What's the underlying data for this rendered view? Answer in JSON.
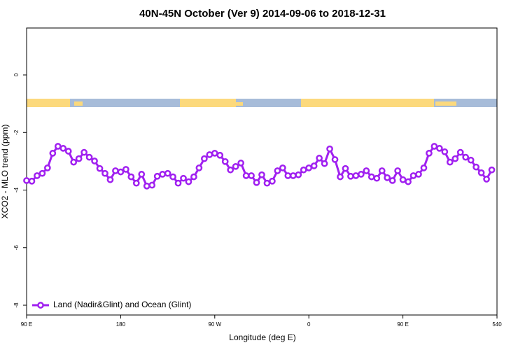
{
  "chart_data": {
    "type": "line",
    "title": "40N-45N October (Ver 9)   2014-09-06 to 2018-12-31",
    "x_label": "Longitude (deg E)",
    "y_label": "XCO2 - MLO trend (ppm)",
    "x": [
      90,
      95,
      100,
      105,
      110,
      115,
      120,
      125,
      130,
      135,
      140,
      145,
      150,
      155,
      160,
      165,
      170,
      175,
      180,
      185,
      190,
      195,
      200,
      205,
      210,
      215,
      220,
      225,
      230,
      235,
      240,
      245,
      250,
      255,
      260,
      265,
      270,
      275,
      280,
      285,
      290,
      295,
      300,
      305,
      310,
      315,
      320,
      325,
      330,
      335,
      340,
      345,
      350,
      355,
      360,
      365,
      370,
      375,
      380,
      385,
      390,
      395,
      400,
      405,
      410,
      415,
      420,
      425,
      430,
      435,
      440,
      445,
      450,
      455,
      460,
      465,
      470,
      475,
      480,
      485,
      490,
      495,
      500,
      505,
      510,
      515,
      520,
      525,
      530,
      535
    ],
    "series": [
      {
        "name": "Land (Nadir&Glint) and Ocean (Glint)",
        "color": "#a020f0",
        "values": [
          -3.67,
          -3.69,
          -3.5,
          -3.42,
          -3.23,
          -2.72,
          -2.48,
          -2.55,
          -2.65,
          -3.03,
          -2.91,
          -2.69,
          -2.86,
          -2.99,
          -3.25,
          -3.42,
          -3.64,
          -3.33,
          -3.37,
          -3.28,
          -3.54,
          -3.76,
          -3.45,
          -3.86,
          -3.83,
          -3.52,
          -3.45,
          -3.42,
          -3.54,
          -3.76,
          -3.59,
          -3.71,
          -3.54,
          -3.23,
          -2.91,
          -2.77,
          -2.72,
          -2.79,
          -3.01,
          -3.3,
          -3.18,
          -3.06,
          -3.5,
          -3.5,
          -3.74,
          -3.47,
          -3.76,
          -3.69,
          -3.33,
          -3.23,
          -3.5,
          -3.5,
          -3.47,
          -3.3,
          -3.23,
          -3.16,
          -2.89,
          -3.08,
          -2.57,
          -2.94,
          -3.54,
          -3.25,
          -3.52,
          -3.5,
          -3.45,
          -3.33,
          -3.54,
          -3.59,
          -3.33,
          -3.57,
          -3.67,
          -3.33,
          -3.64,
          -3.71,
          -3.5,
          -3.45,
          -3.23,
          -2.72,
          -2.48,
          -2.55,
          -2.67,
          -3.03,
          -2.91,
          -2.69,
          -2.86,
          -2.96,
          -3.2,
          -3.4,
          -3.62,
          -3.3
        ]
      }
    ],
    "xlim": [
      90,
      540
    ],
    "xticks": [
      {
        "value": 90,
        "label": "90 E"
      },
      180,
      {
        "value": 270,
        "label": "90 W"
      },
      {
        "value": 360,
        "label": "0"
      },
      {
        "value": 450,
        "label": "90 E"
      },
      540
    ],
    "ylim": [
      -8.34,
      1.63
    ],
    "yticks": [
      0,
      -2,
      -4,
      -6,
      -8
    ],
    "legend": "bottomleft"
  }
}
